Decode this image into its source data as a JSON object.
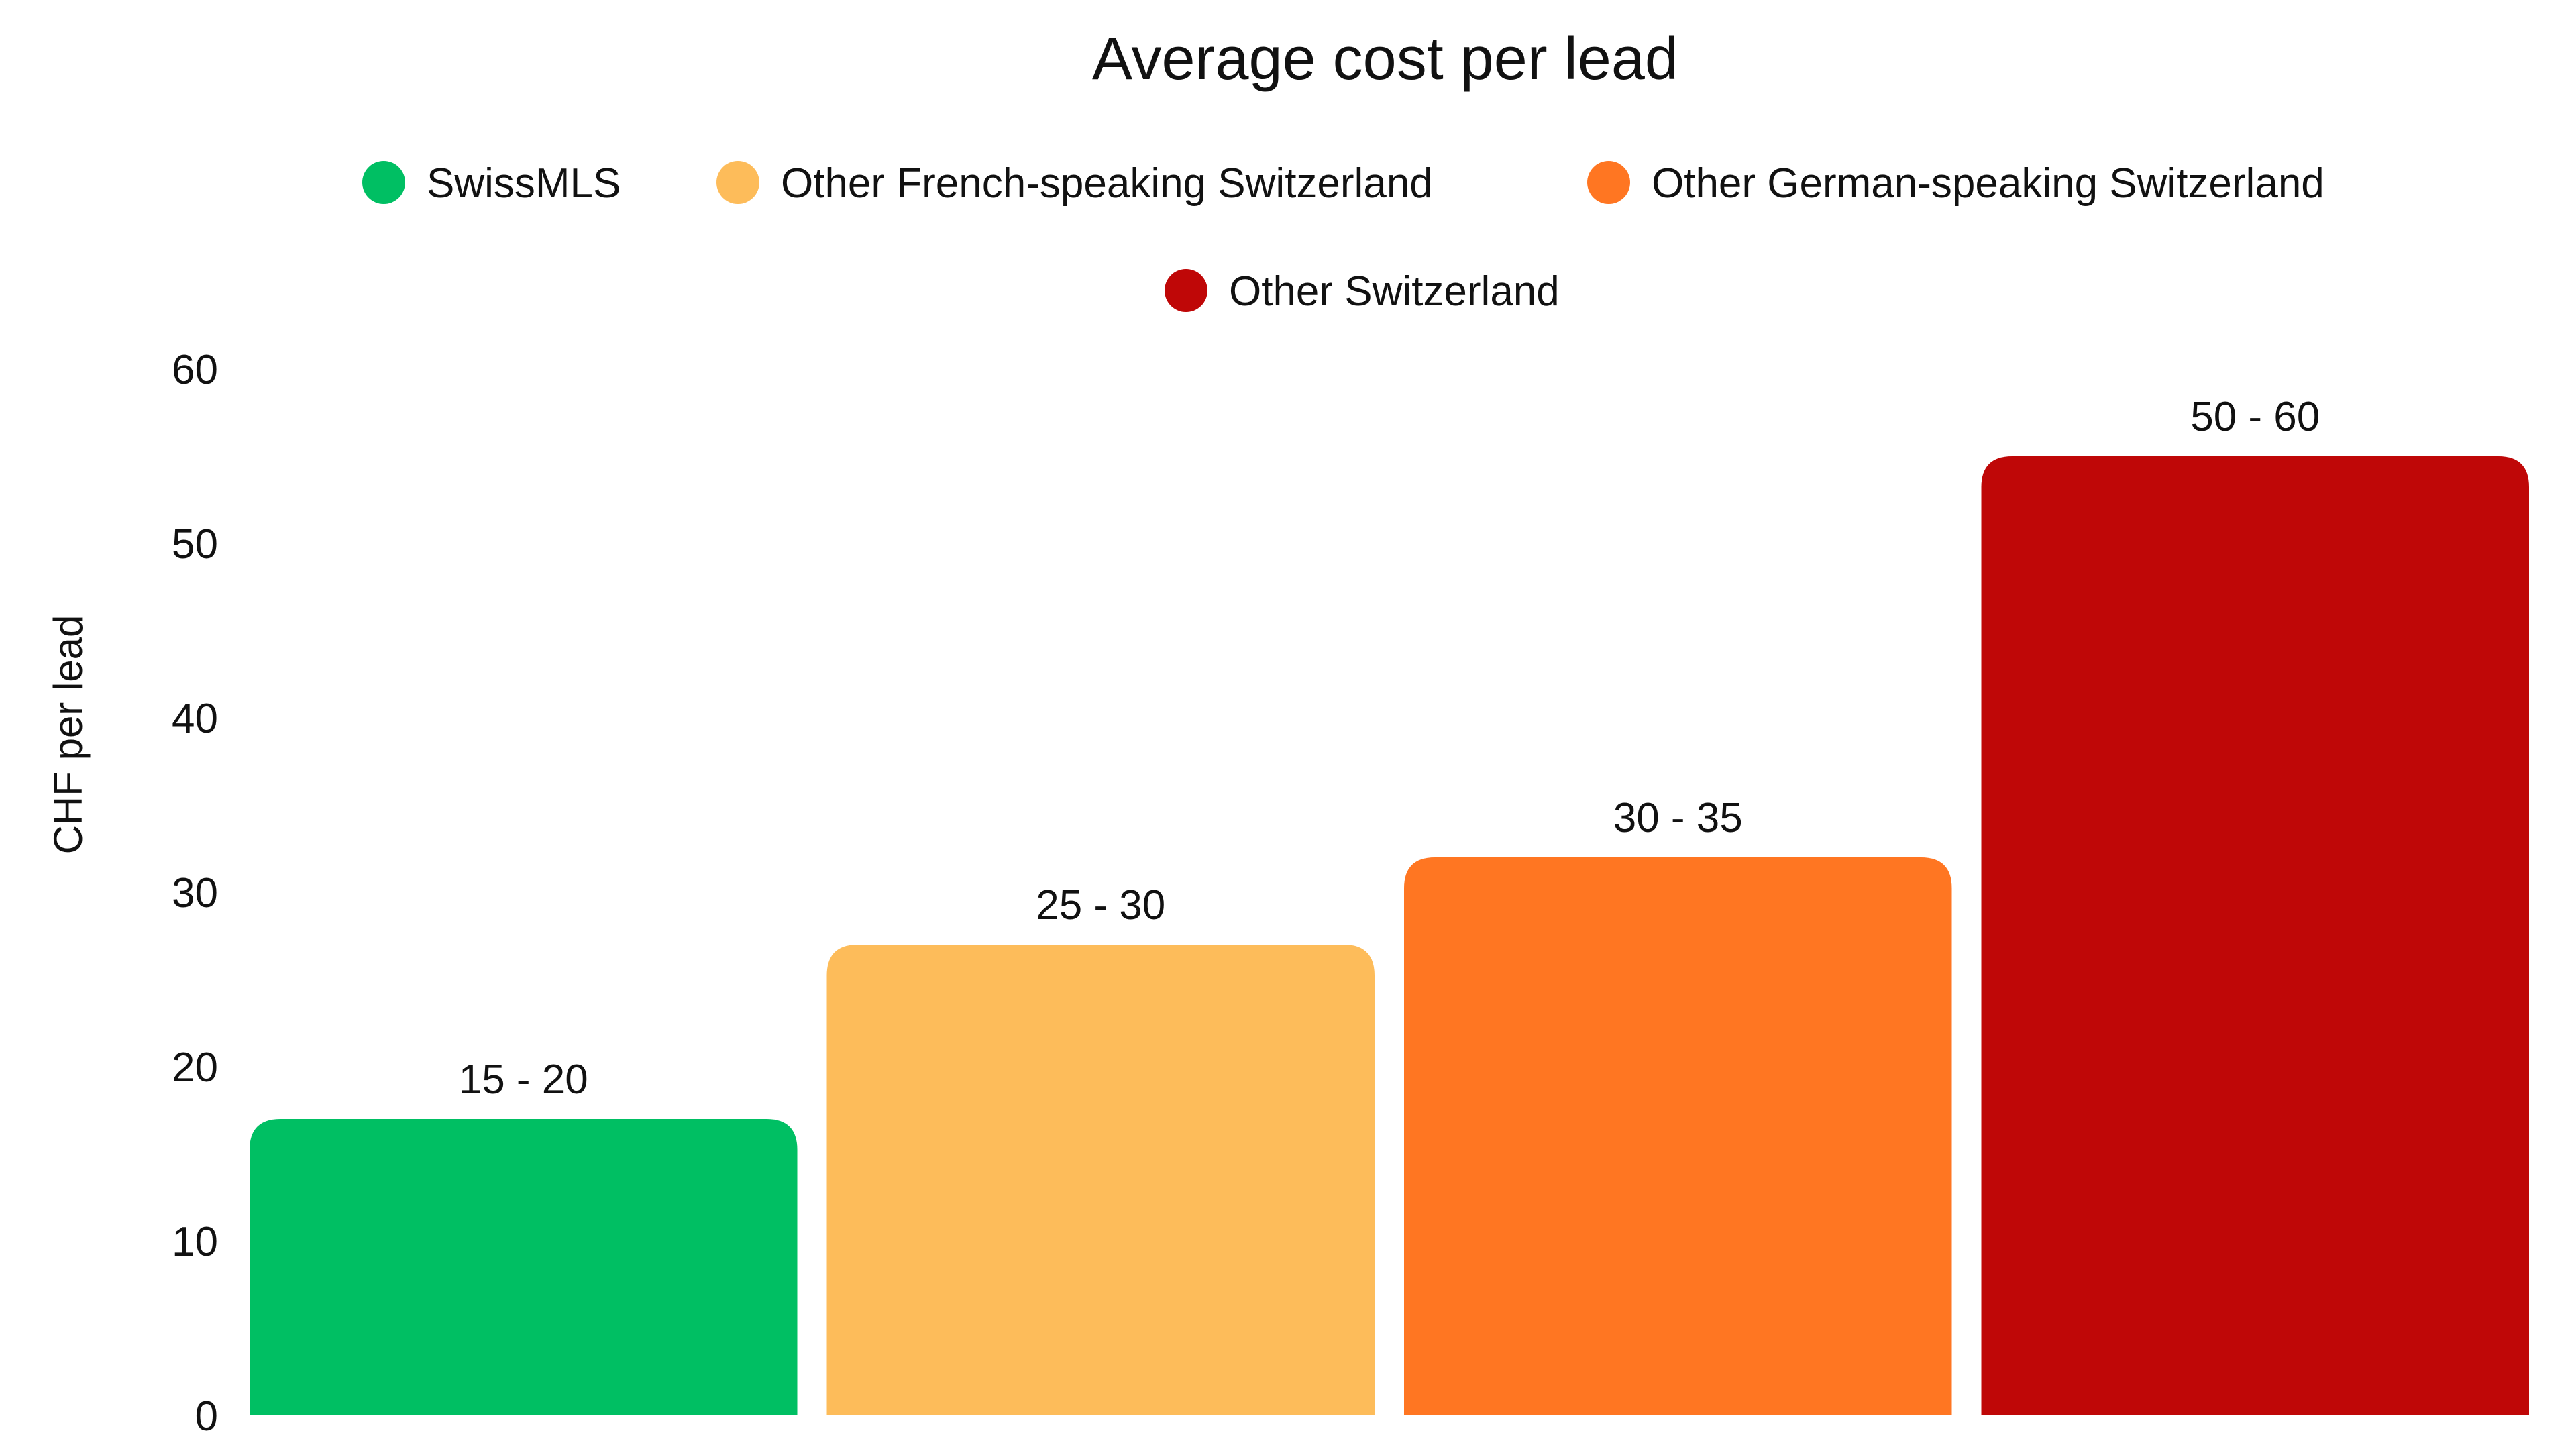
{
  "chart_data": {
    "type": "bar",
    "title": "Average cost per lead",
    "xlabel": "",
    "ylabel": "CHF per lead",
    "ylim": [
      0,
      60
    ],
    "yticks": [
      0,
      10,
      20,
      30,
      40,
      50,
      60
    ],
    "grid": false,
    "legend_position": "top-center",
    "categories": [
      "SwissMLS",
      "Other French-speaking Switzerland",
      "Other German-speaking Switzerland",
      "Other Switzerland"
    ],
    "values": [
      17,
      27,
      32,
      55
    ],
    "data_labels": [
      "15 - 20",
      "25 - 30",
      "30 - 35",
      "50 - 60"
    ],
    "colors": [
      "#00bf63",
      "#fdbc5a",
      "#ff7622",
      "#bf0707"
    ]
  }
}
